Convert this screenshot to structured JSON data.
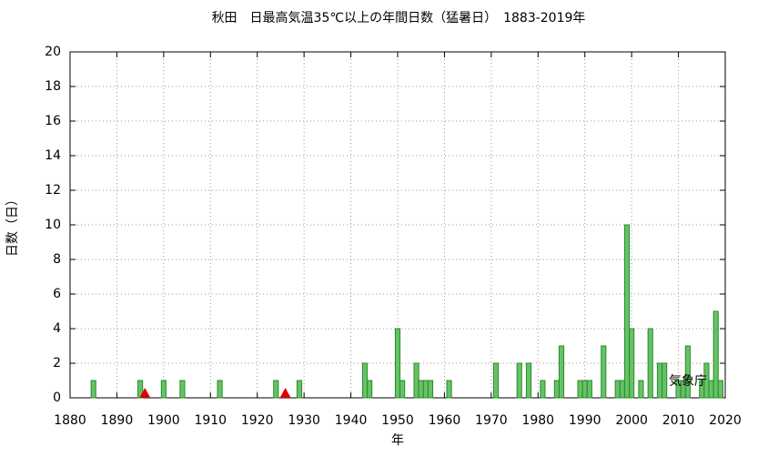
{
  "chart_data": {
    "type": "bar",
    "title": "秋田　日最高気温35℃以上の年間日数（猛暑日）　1883-2019年",
    "x_label": "年",
    "y_label": "日数（日）",
    "annotation": "気象庁",
    "x": [
      1885,
      1895,
      1900,
      1904,
      1912,
      1924,
      1929,
      1943,
      1944,
      1950,
      1951,
      1954,
      1955,
      1956,
      1957,
      1961,
      1971,
      1976,
      1978,
      1981,
      1984,
      1985,
      1989,
      1990,
      1991,
      1994,
      1997,
      1998,
      1999,
      2000,
      2002,
      2004,
      2006,
      2007,
      2010,
      2011,
      2012,
      2015,
      2016,
      2017,
      2018,
      2019
    ],
    "values": [
      1,
      1,
      1,
      1,
      1,
      1,
      1,
      2,
      1,
      4,
      1,
      2,
      1,
      1,
      1,
      1,
      2,
      2,
      2,
      1,
      1,
      3,
      1,
      1,
      1,
      3,
      1,
      1,
      10,
      4,
      1,
      4,
      2,
      2,
      1,
      1,
      3,
      1,
      2,
      1,
      5,
      1
    ],
    "color": "#66c266",
    "missing_years": [
      1896,
      1926
    ],
    "missing_color": "#dd0000",
    "xlim": [
      1880,
      2020
    ],
    "xticks": [
      1880,
      1890,
      1900,
      1910,
      1920,
      1930,
      1940,
      1950,
      1960,
      1970,
      1980,
      1990,
      2000,
      2010,
      2020
    ],
    "ylim": [
      0,
      20
    ],
    "yticks": [
      0,
      2,
      4,
      6,
      8,
      10,
      12,
      14,
      16,
      18,
      20
    ],
    "grid": true
  }
}
